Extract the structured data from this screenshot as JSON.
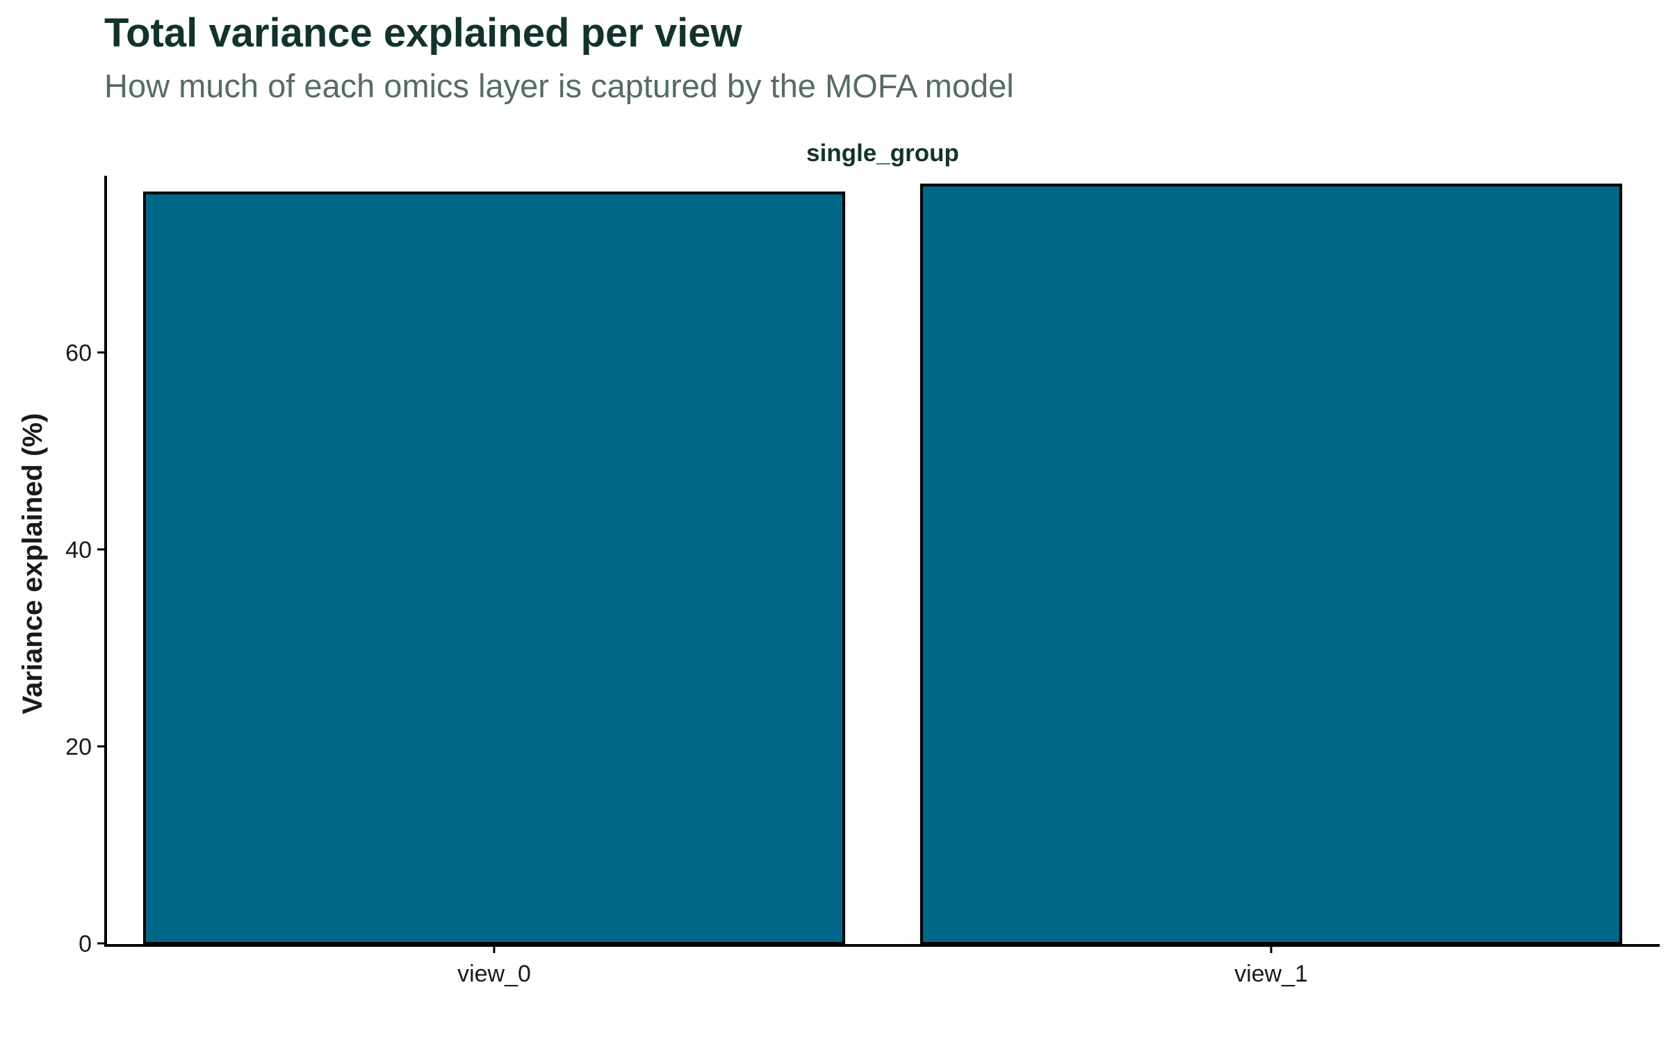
{
  "title": "Total variance explained per view",
  "subtitle": "How much of each omics layer is captured by the MOFA model",
  "chart_data": {
    "type": "bar",
    "facet_label": "single_group",
    "categories": [
      "view_0",
      "view_1"
    ],
    "values": [
      76.2,
      77.0
    ],
    "ylabel": "Variance explained (%)",
    "xlabel": "",
    "ylim": [
      0,
      77.8
    ],
    "yticks": [
      0,
      20,
      40,
      60
    ],
    "bar_color": "#006789",
    "bar_outline": "#000000",
    "grid": false
  }
}
